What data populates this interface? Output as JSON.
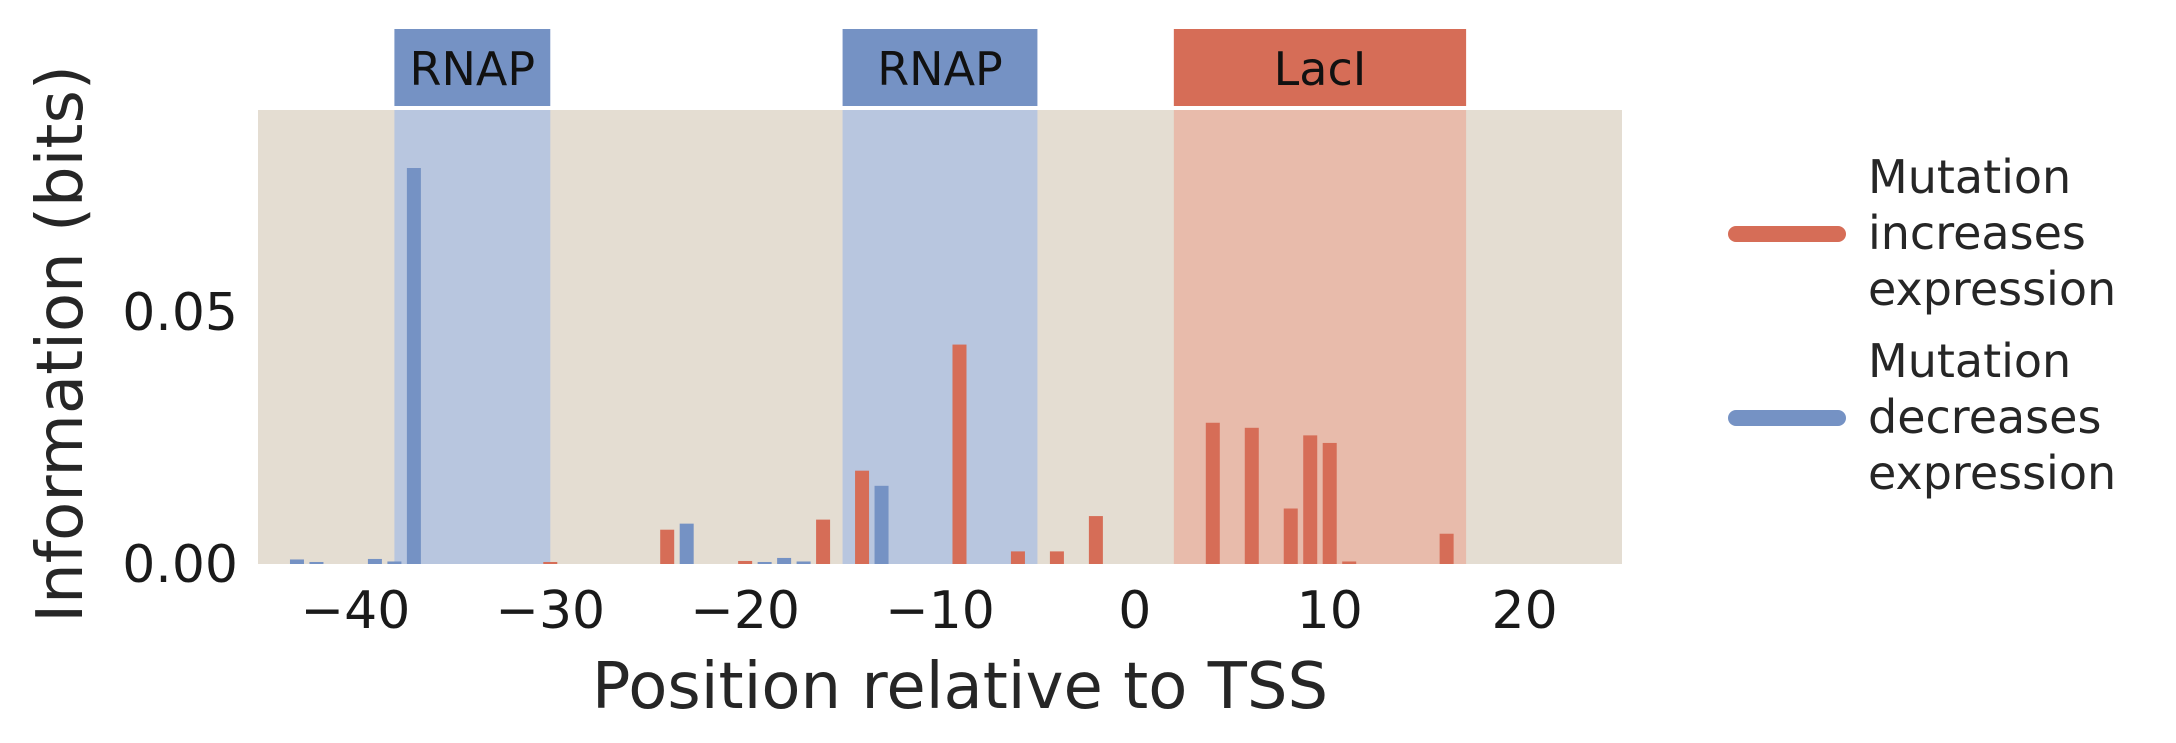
{
  "chart_data": {
    "type": "bar",
    "xlabel": "Position relative to TSS",
    "ylabel": "Information (bits)",
    "xlim": [
      -45,
      25
    ],
    "ylim": [
      0,
      0.09
    ],
    "xticks": [
      "−40",
      "−30",
      "−20",
      "−10",
      "0",
      "10",
      "20"
    ],
    "xtick_values": [
      -40,
      -30,
      -20,
      -10,
      0,
      10,
      20
    ],
    "yticks": [
      "0.00",
      "0.05"
    ],
    "ytick_values": [
      0,
      0.05
    ],
    "grid": false,
    "background_color": "#e4ddd2",
    "regions": [
      {
        "label": "RNAP",
        "start": -38,
        "end": -30,
        "color": "#7592c4",
        "shade": "#b8c6df"
      },
      {
        "label": "RNAP",
        "start": -15,
        "end": -5,
        "color": "#7592c4",
        "shade": "#b8c6df"
      },
      {
        "label": "LacI",
        "start": 2,
        "end": 17,
        "color": "#d66d57",
        "shade": "#e8bbab"
      }
    ],
    "series": [
      {
        "name": "Mutation increases expression",
        "color": "#d66d57",
        "points": [
          {
            "x": -30,
            "y": 0.0004
          },
          {
            "x": -24,
            "y": 0.0068
          },
          {
            "x": -20,
            "y": 0.0006
          },
          {
            "x": -16,
            "y": 0.0088
          },
          {
            "x": -14,
            "y": 0.0185
          },
          {
            "x": -9,
            "y": 0.0435
          },
          {
            "x": -6,
            "y": 0.0025
          },
          {
            "x": -4,
            "y": 0.0025
          },
          {
            "x": -2,
            "y": 0.0095
          },
          {
            "x": 4,
            "y": 0.028
          },
          {
            "x": 6,
            "y": 0.027
          },
          {
            "x": 8,
            "y": 0.011
          },
          {
            "x": 9,
            "y": 0.0255
          },
          {
            "x": 10,
            "y": 0.024
          },
          {
            "x": 11,
            "y": 0.0005
          },
          {
            "x": 16,
            "y": 0.006
          }
        ]
      },
      {
        "name": "Mutation decreases expression",
        "color": "#7592c4",
        "points": [
          {
            "x": -43,
            "y": 0.0009
          },
          {
            "x": -42,
            "y": 0.0004
          },
          {
            "x": -39,
            "y": 0.001
          },
          {
            "x": -38,
            "y": 0.0005
          },
          {
            "x": -37,
            "y": 0.0785
          },
          {
            "x": -23,
            "y": 0.008
          },
          {
            "x": -19,
            "y": 0.0004
          },
          {
            "x": -18,
            "y": 0.0012
          },
          {
            "x": -17,
            "y": 0.0005
          },
          {
            "x": -13,
            "y": 0.0155
          }
        ]
      }
    ],
    "legend": {
      "placement": "right",
      "entries": [
        {
          "lines": [
            "Mutation",
            "increases",
            "expression"
          ],
          "color": "#d66d57"
        },
        {
          "lines": [
            "Mutation",
            "decreases",
            "expression"
          ],
          "color": "#7592c4"
        }
      ]
    }
  }
}
